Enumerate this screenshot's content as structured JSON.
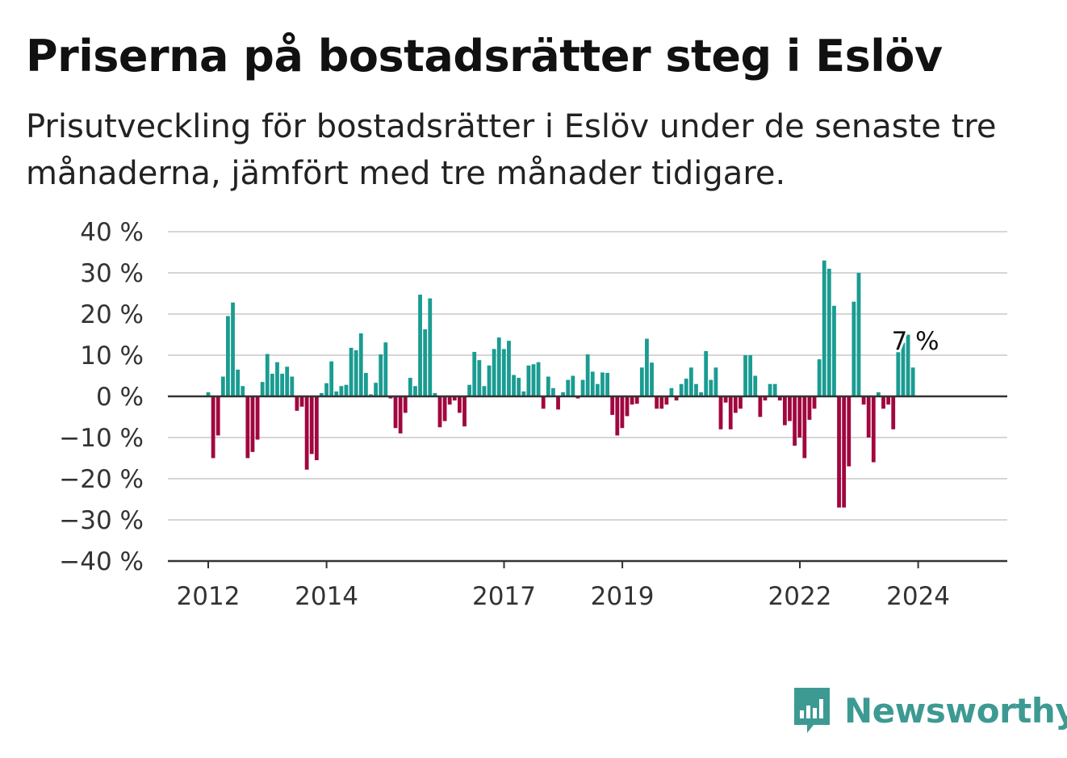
{
  "title": "Priserna på bostadsrätter steg i Eslöv",
  "subtitle": "Prisutveckling för bostadsrätter i Eslöv under de senaste tre månaderna, jämfört med tre månader tidigare.",
  "brand": "Newsworthy",
  "colors": {
    "positive": "#1a9c92",
    "negative": "#a1063f",
    "grid": "#d6d6d6",
    "axis": "#333333",
    "brand": "#3d9a93"
  },
  "chart_data": {
    "type": "bar",
    "unit": "%",
    "ylim": [
      -40,
      40
    ],
    "yticks": [
      "40 %",
      "30 %",
      "20 %",
      "10 %",
      "0 %",
      "−10 %",
      "−20 %",
      "−30 %",
      "−40 %"
    ],
    "ytick_values": [
      40,
      30,
      20,
      10,
      0,
      -10,
      -20,
      -30,
      -40
    ],
    "xticks": [
      "2012",
      "2014",
      "2017",
      "2019",
      "2022",
      "2024"
    ],
    "xtick_values": [
      2012.0,
      2014.0,
      2017.0,
      2019.0,
      2022.0,
      2024.0
    ],
    "x_start": 2012.0,
    "x_step": 0.0833,
    "annotation": "7 %",
    "values": [
      1,
      -15,
      -9.5,
      4.8,
      19.5,
      22.8,
      6.5,
      2.5,
      -15,
      -13.5,
      -10.5,
      3.5,
      10.3,
      5.5,
      8.3,
      5.5,
      7.2,
      4.8,
      -3.5,
      -2.5,
      -17.8,
      -14,
      -15.5,
      0.8,
      3.2,
      8.5,
      1.2,
      2.5,
      2.8,
      11.8,
      11.2,
      15.3,
      5.7,
      0.5,
      3.3,
      10.2,
      13.1,
      -0.5,
      -7.7,
      -9,
      -4,
      4.5,
      2.5,
      24.7,
      16.3,
      23.8,
      0.8,
      -7.5,
      -6,
      -2,
      -1,
      -4,
      -7.3,
      2.8,
      10.8,
      8.8,
      2.5,
      7.5,
      11.5,
      14.3,
      11.5,
      13.5,
      5.2,
      4.5,
      1.2,
      7.5,
      7.8,
      8.3,
      -3,
      4.8,
      2,
      -3.2,
      1,
      4,
      5,
      -0.5,
      4,
      10.2,
      6,
      3,
      5.8,
      5.7,
      -4.5,
      -9.5,
      -7.7,
      -4.8,
      -2,
      -1.8,
      7,
      14,
      8.2,
      -3,
      -3,
      -2,
      2,
      -1,
      3,
      4.3,
      7,
      3,
      1,
      11,
      4,
      7,
      -8,
      -1.5,
      -8,
      -4,
      -3,
      10,
      10,
      5,
      -5,
      -1,
      3,
      3,
      -1,
      -7,
      -6,
      -12,
      -10,
      -15,
      -5.7,
      -3,
      9,
      33,
      31,
      22,
      -27,
      -27,
      -17,
      23,
      30,
      -2,
      -10,
      -16,
      1,
      -3,
      -2,
      -8,
      11.8,
      13,
      15,
      7
    ]
  }
}
